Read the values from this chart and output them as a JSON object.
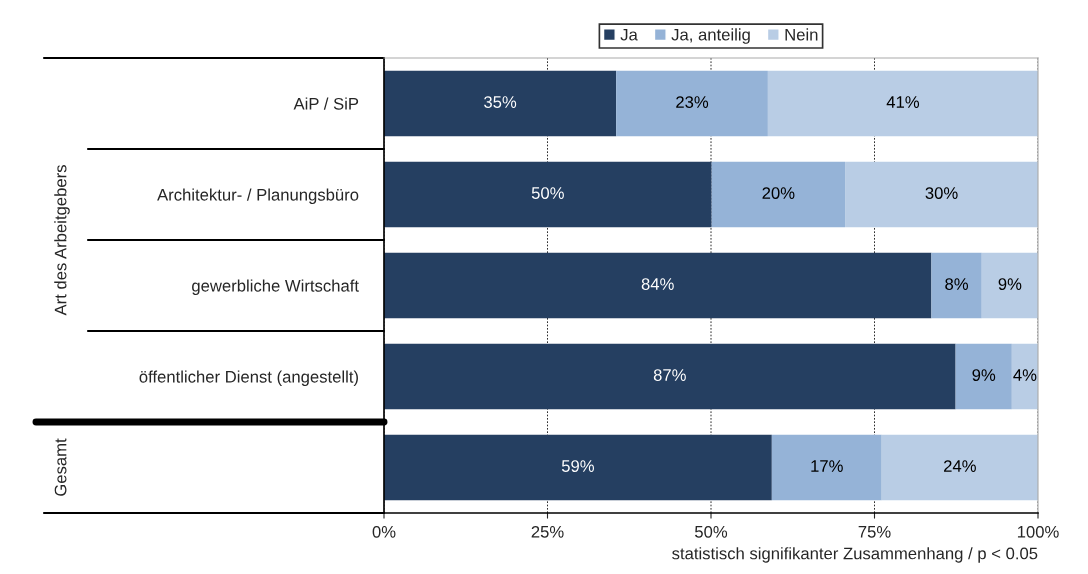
{
  "chart_data": {
    "type": "bar",
    "orientation": "horizontal",
    "stacked": true,
    "categories": [
      "AiP / SiP",
      "Architektur- / Planungsbüro",
      "gewerbliche Wirtschaft",
      "öffentlicher Dienst (angestellt)",
      null
    ],
    "series": [
      {
        "name": "Ja",
        "color": "#253f61",
        "values": [
          35.5,
          50.1,
          83.7,
          87.4,
          59.3
        ],
        "value_labels": [
          "35%",
          "50%",
          "84%",
          "87%",
          "59%"
        ]
      },
      {
        "name": "Ja, anteilig",
        "color": "#95b3d7",
        "values": [
          23.2,
          20.4,
          7.7,
          8.6,
          16.8
        ],
        "value_labels": [
          "23%",
          "20%",
          "8%",
          "9%",
          "17%"
        ]
      },
      {
        "name": "Nein",
        "color": "#b9cde5",
        "values": [
          41.3,
          29.5,
          8.6,
          4.0,
          23.9
        ],
        "value_labels": [
          "41%",
          "30%",
          "9%",
          "4%",
          "24%"
        ]
      }
    ],
    "xlim": [
      0,
      100
    ],
    "xticks": [
      {
        "value": 0,
        "label": "0%"
      },
      {
        "value": 25,
        "label": "25%"
      },
      {
        "value": 50,
        "label": "50%"
      },
      {
        "value": 75,
        "label": "75%"
      },
      {
        "value": 100,
        "label": "100%"
      }
    ],
    "grid": "x",
    "legend": "top",
    "annotations": [
      "Art des Arbeitgebers",
      "Gesamt",
      "statistisch signifikanter Zusammenhang / p < 0.05"
    ]
  }
}
